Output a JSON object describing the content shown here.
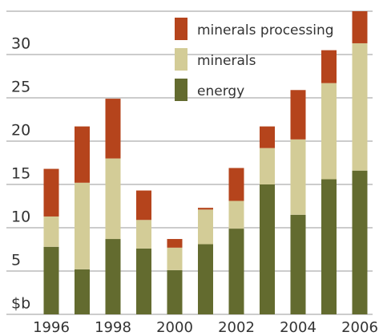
{
  "chart_data": {
    "type": "stacked-bar",
    "categories": [
      "1996",
      null,
      "1998",
      null,
      "2000",
      null,
      "2002",
      null,
      "2004",
      null,
      "2006"
    ],
    "series": [
      {
        "name": "energy",
        "color": "#636b2f",
        "values": [
          7.8,
          5.2,
          8.7,
          7.6,
          5.1,
          8.1,
          9.9,
          15.0,
          11.5,
          15.6,
          16.6
        ]
      },
      {
        "name": "minerals",
        "color": "#d3cc97",
        "values": [
          3.5,
          10.0,
          9.3,
          3.3,
          2.6,
          4.0,
          3.2,
          4.2,
          8.7,
          11.1,
          14.7
        ]
      },
      {
        "name": "minerals processing",
        "color": "#b5441c",
        "values": [
          5.5,
          6.5,
          6.9,
          3.4,
          1.0,
          0.2,
          3.8,
          2.5,
          5.7,
          3.8,
          3.7
        ]
      }
    ],
    "ylim": [
      0,
      35
    ],
    "yticks": [
      {
        "value": 0,
        "label": "$b"
      },
      5,
      10,
      15,
      20,
      25,
      30
    ],
    "grid": true,
    "legend": "top"
  }
}
